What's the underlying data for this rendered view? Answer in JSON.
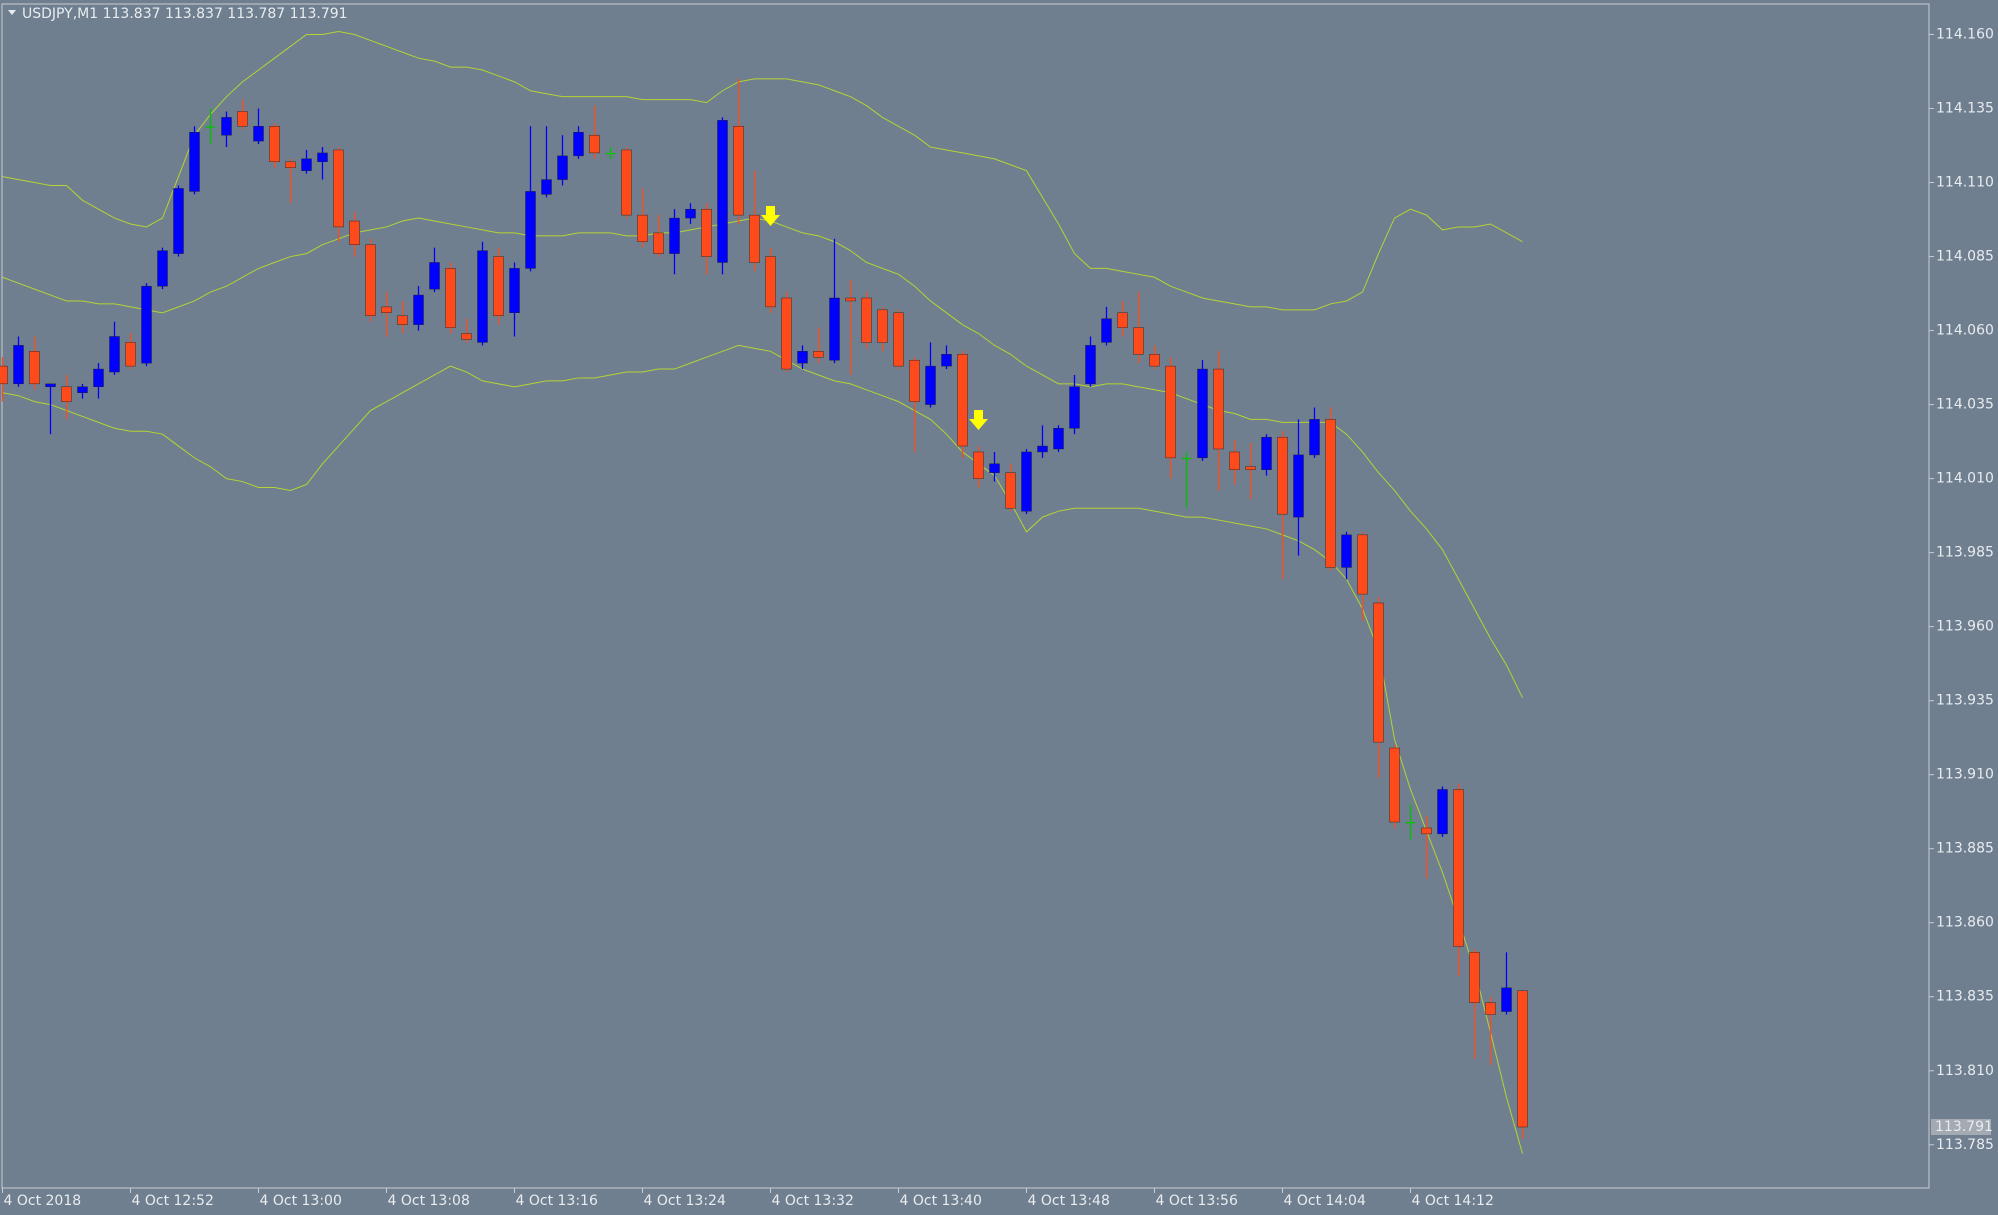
{
  "chart_data": {
    "type": "candlestick",
    "title": "USDJPY,M1  113.837 113.837 113.787 113.791",
    "bull_color": "#0000ff",
    "bear_color": "#ff4a1c",
    "doji_color": "#00c000",
    "ylim": [
      113.7704,
      114.1703
    ],
    "yticks": [
      113.785,
      {
        "value": 113.81,
        "label": "113.810"
      },
      113.835,
      {
        "value": 113.86,
        "label": "113.860"
      },
      113.885,
      {
        "value": 113.91,
        "label": "113.910"
      },
      113.935,
      {
        "value": 113.96,
        "label": "113.960"
      },
      113.985,
      {
        "value": 114.01,
        "label": "114.010"
      },
      114.035,
      {
        "value": 114.06,
        "label": "114.060"
      },
      114.085,
      {
        "value": 114.11,
        "label": "114.110"
      },
      114.135,
      {
        "value": 114.16,
        "label": "114.160"
      }
    ],
    "x": [
      "4 Oct 2018",
      null,
      null,
      null,
      null,
      null,
      null,
      null,
      "4 Oct 12:52",
      null,
      null,
      null,
      null,
      null,
      null,
      null,
      "4 Oct 13:00",
      null,
      null,
      null,
      null,
      null,
      null,
      null,
      "4 Oct 13:08",
      null,
      null,
      null,
      null,
      null,
      null,
      null,
      "4 Oct 13:16",
      null,
      null,
      null,
      null,
      null,
      null,
      null,
      "4 Oct 13:24",
      null,
      null,
      null,
      null,
      null,
      null,
      null,
      "4 Oct 13:32",
      null,
      null,
      null,
      null,
      null,
      null,
      null,
      "4 Oct 13:40",
      null,
      null,
      null,
      null,
      null,
      null,
      null,
      "4 Oct 13:48",
      null,
      null,
      null,
      null,
      null,
      null,
      null,
      "4 Oct 13:56",
      null,
      null,
      null,
      null,
      null,
      null,
      null,
      "4 Oct 14:04",
      null,
      null,
      null,
      null,
      null,
      null,
      null,
      "4 Oct 14:12",
      null,
      null,
      null,
      null,
      null,
      null,
      null
    ],
    "open": [
      114.048,
      114.042,
      114.053,
      114.041,
      114.041,
      114.039,
      114.041,
      114.046,
      114.056,
      114.049,
      114.075,
      114.086,
      114.107,
      114.129,
      114.126,
      114.134,
      114.124,
      114.129,
      114.117,
      114.114,
      114.117,
      114.121,
      114.097,
      114.089,
      114.068,
      114.065,
      114.062,
      114.074,
      114.081,
      114.059,
      114.056,
      114.085,
      114.066,
      114.081,
      114.106,
      114.111,
      114.119,
      114.126,
      114.12,
      114.121,
      114.099,
      114.093,
      114.086,
      114.098,
      114.101,
      114.083,
      114.129,
      114.099,
      114.085,
      114.071,
      114.049,
      114.053,
      114.05,
      114.071,
      114.071,
      114.067,
      114.066,
      114.05,
      114.035,
      114.048,
      114.052,
      114.019,
      114.012,
      114.012,
      113.999,
      114.019,
      114.02,
      114.027,
      114.042,
      114.056,
      114.066,
      114.061,
      114.052,
      114.048,
      114.017,
      114.017,
      114.047,
      114.019,
      114.014,
      114.013,
      114.024,
      113.997,
      114.018,
      114.03,
      113.98,
      113.991,
      113.968,
      113.919,
      113.894,
      113.892,
      113.89,
      113.905,
      113.85,
      113.833,
      113.83,
      113.837
    ],
    "high": [
      114.051,
      114.058,
      114.058,
      114.042,
      114.045,
      114.042,
      114.049,
      114.063,
      114.059,
      114.076,
      114.088,
      114.109,
      114.129,
      114.135,
      114.134,
      114.138,
      114.135,
      114.13,
      114.118,
      114.121,
      114.122,
      114.122,
      114.1,
      114.091,
      114.073,
      114.07,
      114.075,
      114.088,
      114.083,
      114.064,
      114.09,
      114.088,
      114.083,
      114.129,
      114.129,
      114.126,
      114.129,
      114.136,
      114.122,
      114.122,
      114.108,
      114.099,
      114.101,
      114.103,
      114.103,
      114.132,
      114.145,
      114.114,
      114.088,
      114.073,
      114.055,
      114.061,
      114.091,
      114.077,
      114.073,
      114.068,
      114.067,
      114.051,
      114.056,
      114.055,
      114.053,
      114.021,
      114.019,
      114.015,
      114.02,
      114.028,
      114.028,
      114.045,
      114.058,
      114.068,
      114.07,
      114.073,
      114.055,
      114.051,
      114.019,
      114.05,
      114.053,
      114.023,
      114.022,
      114.025,
      114.026,
      114.03,
      114.034,
      114.034,
      113.992,
      113.992,
      113.97,
      113.92,
      113.9,
      113.896,
      113.906,
      113.907,
      113.851,
      113.835,
      113.85,
      113.837
    ],
    "low": [
      114.036,
      114.041,
      114.04,
      114.025,
      114.03,
      114.037,
      114.037,
      114.045,
      114.047,
      114.048,
      114.074,
      114.085,
      114.106,
      114.123,
      114.122,
      114.128,
      114.123,
      114.115,
      114.103,
      114.113,
      114.111,
      114.09,
      114.085,
      114.063,
      114.058,
      114.059,
      114.06,
      114.073,
      114.059,
      114.056,
      114.055,
      114.062,
      114.058,
      114.08,
      114.105,
      114.109,
      114.118,
      114.118,
      114.118,
      114.098,
      114.088,
      114.085,
      114.079,
      114.096,
      114.079,
      114.079,
      114.096,
      114.08,
      114.066,
      114.046,
      114.047,
      114.049,
      114.049,
      114.045,
      114.054,
      114.053,
      114.047,
      114.019,
      114.034,
      114.047,
      114.017,
      114.007,
      114.009,
      113.999,
      113.998,
      114.017,
      114.019,
      114.025,
      114.041,
      114.055,
      114.058,
      114.049,
      114.047,
      114.01,
      114.0,
      114.016,
      114.006,
      114.008,
      114.003,
      114.011,
      113.976,
      113.984,
      114.017,
      113.979,
      113.976,
      113.962,
      113.909,
      113.892,
      113.888,
      113.875,
      113.889,
      113.842,
      113.814,
      113.812,
      113.829,
      113.787
    ],
    "close": [
      114.042,
      114.055,
      114.042,
      114.042,
      114.036,
      114.041,
      114.047,
      114.058,
      114.048,
      114.075,
      114.087,
      114.108,
      114.127,
      114.129,
      114.132,
      114.129,
      114.129,
      114.117,
      114.115,
      114.118,
      114.12,
      114.095,
      114.089,
      114.065,
      114.066,
      114.062,
      114.072,
      114.083,
      114.061,
      114.057,
      114.087,
      114.065,
      114.081,
      114.107,
      114.111,
      114.119,
      114.127,
      114.12,
      114.12,
      114.099,
      114.09,
      114.086,
      114.098,
      114.101,
      114.085,
      114.131,
      114.099,
      114.083,
      114.068,
      114.047,
      114.053,
      114.051,
      114.071,
      114.07,
      114.056,
      114.056,
      114.048,
      114.036,
      114.048,
      114.052,
      114.021,
      114.01,
      114.015,
      114.0,
      114.019,
      114.021,
      114.027,
      114.041,
      114.055,
      114.064,
      114.061,
      114.052,
      114.048,
      114.017,
      114.017,
      114.047,
      114.02,
      114.013,
      114.013,
      114.024,
      113.998,
      114.018,
      114.03,
      113.98,
      113.991,
      113.971,
      113.921,
      113.894,
      113.894,
      113.89,
      113.905,
      113.852,
      113.833,
      113.829,
      113.838,
      113.791
    ],
    "bands": {
      "color": "#b5d334",
      "upper": [
        114.112,
        114.111,
        114.11,
        114.109,
        114.109,
        114.104,
        114.101,
        114.098,
        114.096,
        114.095,
        114.098,
        114.112,
        114.126,
        114.133,
        114.139,
        114.144,
        114.148,
        114.152,
        114.156,
        114.16,
        114.16,
        114.161,
        114.16,
        114.158,
        114.156,
        114.154,
        114.152,
        114.151,
        114.149,
        114.149,
        114.148,
        114.146,
        114.144,
        114.141,
        114.14,
        114.139,
        114.139,
        114.139,
        114.139,
        114.139,
        114.138,
        114.138,
        114.138,
        114.138,
        114.137,
        114.141,
        114.144,
        114.145,
        114.145,
        114.145,
        114.144,
        114.143,
        114.141,
        114.139,
        114.136,
        114.132,
        114.129,
        114.126,
        114.122,
        114.121,
        114.12,
        114.119,
        114.118,
        114.116,
        114.114,
        114.105,
        114.096,
        114.086,
        114.081,
        114.081,
        114.08,
        114.079,
        114.078,
        114.075,
        114.073,
        114.071,
        114.07,
        114.069,
        114.068,
        114.068,
        114.067,
        114.067,
        114.067,
        114.069,
        114.07,
        114.073,
        114.086,
        114.098,
        114.101,
        114.099,
        114.094,
        114.095,
        114.095,
        114.096,
        114.093,
        114.09
      ],
      "middle": [
        114.078,
        114.076,
        114.074,
        114.072,
        114.07,
        114.07,
        114.069,
        114.069,
        114.068,
        114.067,
        114.066,
        114.068,
        114.07,
        114.073,
        114.075,
        114.078,
        114.081,
        114.083,
        114.085,
        114.086,
        114.089,
        114.091,
        114.093,
        114.094,
        114.095,
        114.097,
        114.098,
        114.097,
        114.096,
        114.095,
        114.094,
        114.093,
        114.093,
        114.092,
        114.092,
        114.092,
        114.093,
        114.093,
        114.093,
        114.092,
        114.092,
        114.093,
        114.093,
        114.094,
        114.095,
        114.096,
        114.097,
        114.098,
        114.097,
        114.095,
        114.093,
        114.092,
        114.09,
        114.087,
        114.083,
        114.081,
        114.079,
        114.075,
        114.07,
        114.066,
        114.062,
        114.059,
        114.055,
        114.052,
        114.048,
        114.045,
        114.042,
        114.042,
        114.041,
        114.042,
        114.042,
        114.041,
        114.04,
        114.039,
        114.037,
        114.035,
        114.033,
        114.032,
        114.03,
        114.03,
        114.029,
        114.029,
        114.029,
        114.029,
        114.025,
        114.019,
        114.012,
        114.006,
        113.999,
        113.993,
        113.986,
        113.976,
        113.966,
        113.956,
        113.947,
        113.936
      ],
      "lower": [
        114.039,
        114.038,
        114.036,
        114.035,
        114.033,
        114.031,
        114.029,
        114.027,
        114.026,
        114.026,
        114.025,
        114.021,
        114.017,
        114.014,
        114.01,
        114.009,
        114.007,
        114.007,
        114.006,
        114.008,
        114.015,
        114.021,
        114.027,
        114.033,
        114.036,
        114.039,
        114.042,
        114.045,
        114.048,
        114.046,
        114.043,
        114.042,
        114.041,
        114.042,
        114.043,
        114.043,
        114.044,
        114.044,
        114.045,
        114.046,
        114.046,
        114.047,
        114.047,
        114.049,
        114.051,
        114.053,
        114.055,
        114.054,
        114.053,
        114.05,
        114.047,
        114.045,
        114.043,
        114.042,
        114.04,
        114.038,
        114.036,
        114.033,
        114.03,
        114.025,
        114.019,
        114.015,
        114.011,
        114.002,
        113.992,
        113.997,
        113.999,
        114.0,
        114.0,
        114.0,
        114.0,
        114.0,
        113.999,
        113.998,
        113.997,
        113.997,
        113.996,
        113.995,
        113.994,
        113.993,
        113.991,
        113.989,
        113.986,
        113.982,
        113.976,
        113.966,
        113.952,
        113.922,
        113.905,
        113.891,
        113.877,
        113.861,
        113.844,
        113.823,
        113.801,
        113.782
      ]
    }
  }
}
